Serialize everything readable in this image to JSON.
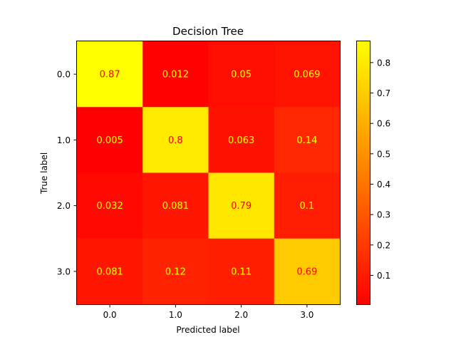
{
  "chart_data": {
    "type": "heatmap",
    "title": "Decision Tree",
    "xlabel": "Predicted label",
    "ylabel": "True label",
    "x_categories": [
      "0.0",
      "1.0",
      "2.0",
      "3.0"
    ],
    "y_categories": [
      "0.0",
      "1.0",
      "2.0",
      "3.0"
    ],
    "values": [
      [
        0.87,
        0.012,
        0.05,
        0.069
      ],
      [
        0.005,
        0.8,
        0.063,
        0.14
      ],
      [
        0.032,
        0.081,
        0.79,
        0.1
      ],
      [
        0.081,
        0.12,
        0.11,
        0.69
      ]
    ],
    "value_labels": [
      [
        "0.87",
        "0.012",
        "0.05",
        "0.069"
      ],
      [
        "0.005",
        "0.8",
        "0.063",
        "0.14"
      ],
      [
        "0.032",
        "0.081",
        "0.79",
        "0.1"
      ],
      [
        "0.081",
        "0.12",
        "0.11",
        "0.69"
      ]
    ],
    "colormap": "autumn",
    "colormap_range": [
      0.005,
      0.87
    ],
    "label_color": "#ff0000",
    "label_color_on_red": "#ffff00",
    "colorbar": {
      "ticks": [
        "0.1",
        "0.2",
        "0.3",
        "0.4",
        "0.5",
        "0.6",
        "0.7",
        "0.8"
      ],
      "tick_values": [
        0.1,
        0.2,
        0.3,
        0.4,
        0.5,
        0.6,
        0.7,
        0.8
      ]
    },
    "grid": false,
    "legend": "colorbar-right"
  }
}
